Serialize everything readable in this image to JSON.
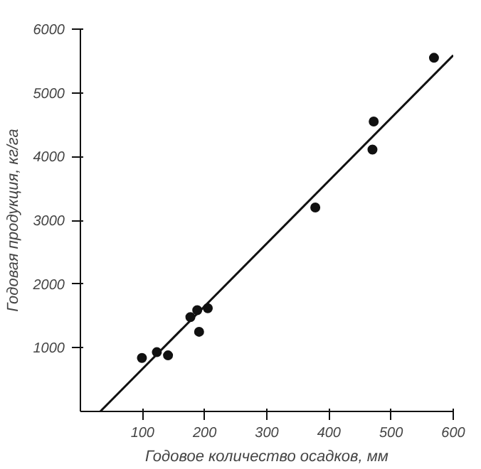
{
  "chart_data": {
    "type": "scatter",
    "xlabel": "Годовое количество осадков, мм",
    "ylabel": "Годовая продукция, кг/га",
    "xlim": [
      0,
      600
    ],
    "ylim": [
      0,
      6000
    ],
    "xticks": [
      100,
      200,
      300,
      400,
      500,
      600
    ],
    "yticks": [
      1000,
      2000,
      3000,
      4000,
      5000,
      6000
    ],
    "grid": false,
    "series": [
      {
        "color": "#111111",
        "marker": "circle",
        "x": [
          99,
          123,
          141,
          177,
          188,
          191,
          205,
          378,
          470,
          472,
          569
        ],
        "values": [
          840,
          930,
          880,
          1480,
          1590,
          1250,
          1620,
          3200,
          4110,
          4550,
          5550
        ]
      },
      {
        "type": "line",
        "color": "#111111",
        "x": [
          32,
          600
        ],
        "values": [
          0,
          5590
        ],
        "line_style": "solid"
      }
    ]
  }
}
